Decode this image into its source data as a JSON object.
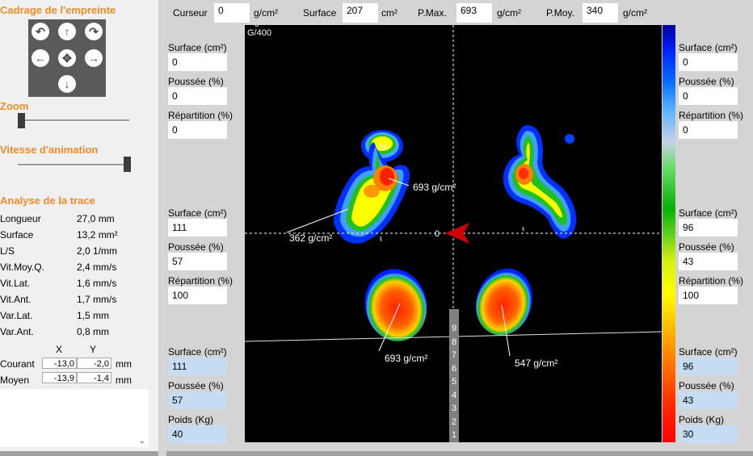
{
  "left": {
    "cadrage_title": "Cadrage de l'empreinte",
    "zoom_title": "Zoom",
    "speed_title": "Vitesse d'animation",
    "analysis_title": "Analyse de la trace",
    "stats": [
      {
        "label": "Longueur",
        "value": "27,0 mm"
      },
      {
        "label": "Surface",
        "value": "13,2 mm²"
      },
      {
        "label": "L/S",
        "value": "2,0 1/mm"
      },
      {
        "label": "Vit.Moy.Q.",
        "value": "2,4 mm/s"
      },
      {
        "label": "Vit.Lat.",
        "value": "1,6 mm/s"
      },
      {
        "label": "Vit.Ant.",
        "value": "1,7 mm/s"
      },
      {
        "label": "Var.Lat.",
        "value": "1,5 mm"
      },
      {
        "label": "Var.Ant.",
        "value": "0,8 mm"
      }
    ],
    "coords": {
      "x_header": "X",
      "y_header": "Y",
      "courant_label": "Courant",
      "courant_x": "-13,0",
      "courant_y": "-2,0",
      "courant_unit": "mm",
      "moyen_label": "Moyen",
      "moyen_x": "-13,9",
      "moyen_y": "-1,4",
      "moyen_unit": "mm"
    },
    "zoom_level": 0.0,
    "speed_level": 1.0
  },
  "top": {
    "curseur_label": "Curseur",
    "curseur_value": "0",
    "curseur_unit": "g/cm²",
    "surface_label": "Surface",
    "surface_value": "207",
    "surface_unit": "cm²",
    "pmax_label": "P.Max.",
    "pmax_value": "693",
    "pmax_unit": "g/cm²",
    "pmoy_label": "P.Moy.",
    "pmoy_value": "340",
    "pmoy_unit": "g/cm²"
  },
  "left_fields": {
    "top": {
      "surface_label": "Surface (cm²)",
      "surface": "0",
      "poussee_label": "Poussée (%)",
      "poussee": "0",
      "repartition_label": "Répartition (%)",
      "repartition": "0"
    },
    "mid": {
      "surface_label": "Surface (cm²)",
      "surface": "111",
      "poussee_label": "Poussée (%)",
      "poussee": "57",
      "repartition_label": "Répartition (%)",
      "repartition": "100"
    },
    "bottom": {
      "surface_label": "Surface (cm²)",
      "surface": "111",
      "poussee_label": "Poussée (%)",
      "poussee": "57",
      "poids_label": "Poids (Kg)",
      "poids": "40"
    }
  },
  "right_fields": {
    "top": {
      "surface_label": "Surface (cm²)",
      "surface": "0",
      "poussee_label": "Poussée (%)",
      "poussee": "0",
      "repartition_label": "Répartition (%)",
      "repartition": "0"
    },
    "mid": {
      "surface_label": "Surface (cm²)",
      "surface": "96",
      "poussee_label": "Poussée (%)",
      "poussee": "43",
      "repartition_label": "Répartition (%)",
      "repartition": "100"
    },
    "bottom": {
      "surface_label": "Surface (cm²)",
      "surface": "96",
      "poussee_label": "Poussée (%)",
      "poussee": "43",
      "poids_label": "Poids (Kg)",
      "poids": "30"
    }
  },
  "plot": {
    "corner_top": "0",
    "corner_label": "G/400",
    "marker_m": "M",
    "annotations": {
      "front_left_peak": "693 g/cm²",
      "front_left_low": "362 g/cm²",
      "rear_left": "693 g/cm²",
      "rear_right": "547 g/cm²"
    },
    "scale_digits": [
      "9",
      "8",
      "7",
      "6",
      "5",
      "4",
      "3",
      "2",
      "1"
    ],
    "center_marker": "0"
  }
}
